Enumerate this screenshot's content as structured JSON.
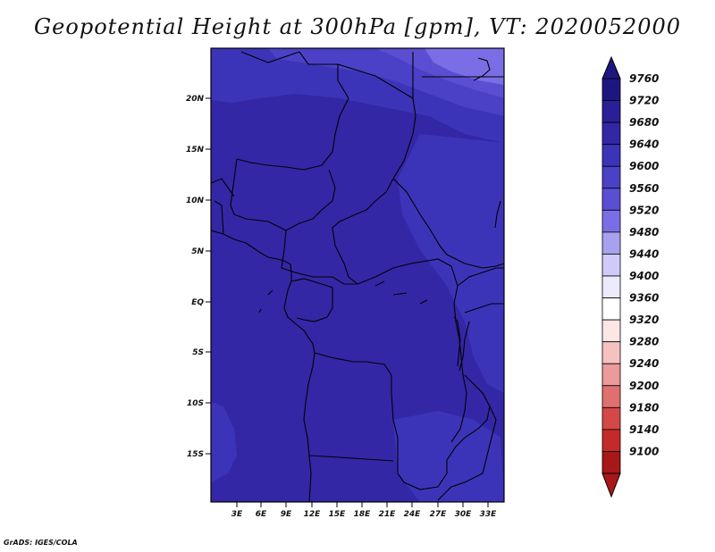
{
  "title": "Geopotential Height at 300hPa [gpm], VT: 2020052000",
  "credit": "GrADS: IGES/COLA",
  "map": {
    "lon_ticks": [
      "3E",
      "6E",
      "9E",
      "12E",
      "15E",
      "18E",
      "21E",
      "24E",
      "27E",
      "30E",
      "33E"
    ],
    "lat_ticks": [
      "20N",
      "15N",
      "10N",
      "5N",
      "EQ",
      "5S",
      "10S",
      "15S"
    ],
    "base_color": "#3327a6",
    "light_color": "#5a4fd2",
    "lighter_color": "#7a6ee6",
    "boundary_color": "#000000"
  },
  "colorbar": {
    "levels": [
      "9760",
      "9720",
      "9680",
      "9640",
      "9600",
      "9560",
      "9520",
      "9480",
      "9440",
      "9400",
      "9360",
      "9320",
      "9280",
      "9240",
      "9200",
      "9180",
      "9140",
      "9100"
    ],
    "colors": [
      "#1e1680",
      "#2a1f99",
      "#3327a6",
      "#3c34b8",
      "#4a41c6",
      "#5a4fd2",
      "#7a6ee6",
      "#a9a0f0",
      "#cfcaf8",
      "#eceafd",
      "#ffffff",
      "#fde6e6",
      "#f6c1c1",
      "#ec9a9a",
      "#e07070",
      "#d44848",
      "#c42a2a",
      "#a81818"
    ]
  }
}
